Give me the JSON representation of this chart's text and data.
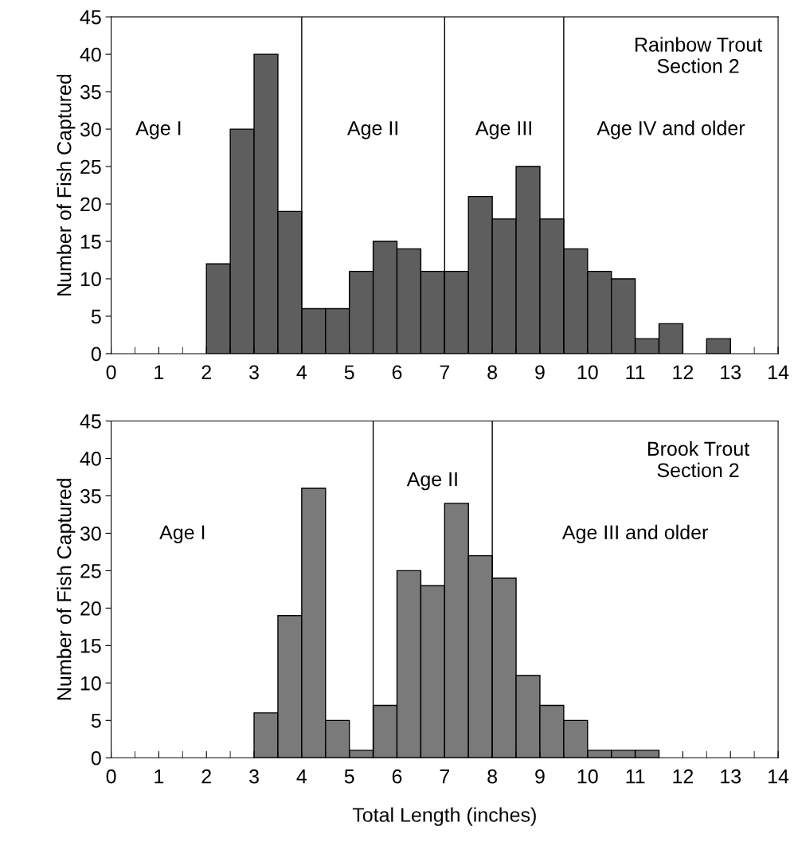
{
  "chart_data": [
    {
      "type": "histogram",
      "ylabel": "Number of Fish Captured",
      "annotations": [
        "Rainbow Trout\nSection 2",
        "Age I",
        "Age II",
        "Age III",
        "Age IV and older"
      ],
      "bins": [
        2,
        2.5,
        3,
        3.5,
        4,
        4.5,
        5,
        5.5,
        6,
        6.5,
        7,
        7.5,
        8,
        8.5,
        9,
        9.5,
        10,
        10.5,
        11,
        11.5,
        12,
        12.5,
        13
      ],
      "values": [
        12,
        30,
        40,
        19,
        6,
        6,
        11,
        15,
        14,
        11,
        11,
        21,
        18,
        25,
        18,
        14,
        11,
        10,
        2,
        4,
        0,
        2
      ],
      "color": "#5e5e5e",
      "ref_lines": [
        {
          "axis": "x",
          "value": 4
        },
        {
          "axis": "x",
          "value": 7
        },
        {
          "axis": "x",
          "value": 9.5
        }
      ],
      "xlim": [
        0,
        14
      ],
      "xticks": [
        0,
        1,
        2,
        3,
        4,
        5,
        6,
        7,
        8,
        9,
        10,
        11,
        12,
        13,
        14
      ],
      "ylim": [
        0,
        45
      ],
      "yticks": [
        0,
        5,
        10,
        15,
        20,
        25,
        30,
        35,
        40,
        45
      ],
      "grid": false
    },
    {
      "type": "histogram",
      "xlabel": "Total Length (inches)",
      "ylabel": "Number of Fish Captured",
      "annotations": [
        "Brook Trout\nSection 2",
        "Age I",
        "Age II",
        "Age III and older"
      ],
      "bins": [
        3,
        3.5,
        4,
        4.5,
        5,
        5.5,
        6,
        6.5,
        7,
        7.5,
        8,
        8.5,
        9,
        9.5,
        10,
        10.5,
        11,
        11.5
      ],
      "values": [
        6,
        19,
        36,
        5,
        1,
        7,
        25,
        23,
        34,
        27,
        24,
        11,
        7,
        5,
        1,
        1,
        1
      ],
      "color": "#7a7a7a",
      "ref_lines": [
        {
          "axis": "x",
          "value": 5.5
        },
        {
          "axis": "x",
          "value": 8
        }
      ],
      "xlim": [
        0,
        14
      ],
      "xticks": [
        0,
        1,
        2,
        3,
        4,
        5,
        6,
        7,
        8,
        9,
        10,
        11,
        12,
        13,
        14
      ],
      "ylim": [
        0,
        45
      ],
      "yticks": [
        0,
        5,
        10,
        15,
        20,
        25,
        30,
        35,
        40,
        45
      ],
      "grid": false
    }
  ]
}
